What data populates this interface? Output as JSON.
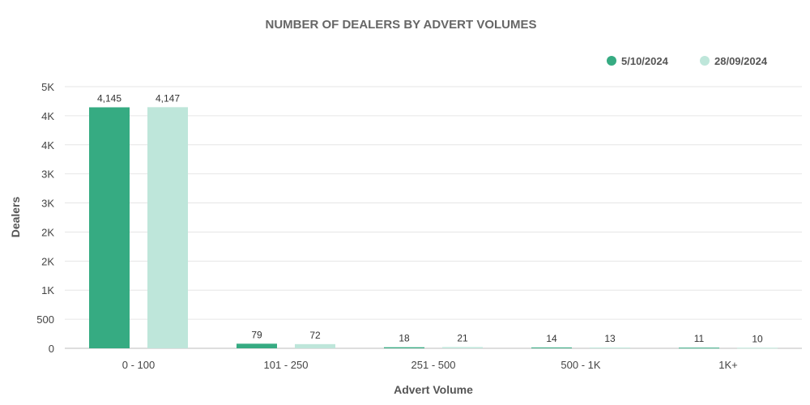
{
  "chart_data": {
    "type": "bar",
    "title": "NUMBER OF DEALERS BY ADVERT VOLUMES",
    "xlabel": "Advert Volume",
    "ylabel": "Dealers",
    "categories": [
      "0 - 100",
      "101 - 250",
      "251 - 500",
      "500 - 1K",
      "1K+"
    ],
    "series": [
      {
        "name": "5/10/2024",
        "color": "#36ab82",
        "values": [
          4145,
          79,
          18,
          14,
          11
        ],
        "labels": [
          "4,145",
          "79",
          "18",
          "14",
          "11"
        ]
      },
      {
        "name": "28/09/2024",
        "color": "#bee6da",
        "values": [
          4147,
          72,
          21,
          13,
          10
        ],
        "labels": [
          "4,147",
          "72",
          "21",
          "13",
          "10"
        ]
      }
    ],
    "ylim": [
      0,
      4500
    ],
    "yticks": [
      0,
      500,
      1000,
      1500,
      2000,
      2500,
      3000,
      3500,
      4000,
      4500
    ],
    "ytick_labels": [
      "0",
      "500",
      "1K",
      "2K",
      "2K",
      "3K",
      "3K",
      "4K",
      "4K",
      "5K"
    ],
    "grid": true,
    "legend_position": "top-right"
  }
}
